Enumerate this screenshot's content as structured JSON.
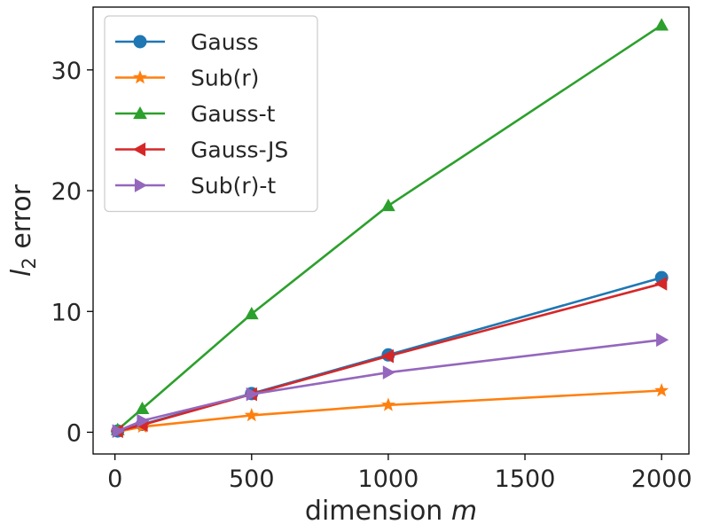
{
  "chart_data": {
    "type": "line",
    "xlabel_text": "dimension ",
    "xlabel_var": "m",
    "ylabel_var": "l",
    "ylabel_sub": "2",
    "ylabel_text": " error",
    "xlim": [
      -80,
      2100
    ],
    "ylim": [
      -1.8,
      35.2
    ],
    "xticks": [
      0,
      500,
      1000,
      1500,
      2000
    ],
    "yticks": [
      0,
      10,
      20,
      30
    ],
    "grid": false,
    "legend_position": "top-left",
    "x": [
      10,
      100,
      500,
      1000,
      2000
    ],
    "series": [
      {
        "name": "Gauss",
        "color": "#1f77b4",
        "marker": "circle",
        "values": [
          0.1,
          0.65,
          3.2,
          6.4,
          12.8
        ]
      },
      {
        "name": "Sub(r)",
        "color": "#ff7f0e",
        "marker": "star",
        "values": [
          0.05,
          0.45,
          1.4,
          2.25,
          3.45
        ]
      },
      {
        "name": "Gauss-t",
        "color": "#2ca02c",
        "marker": "triangle-up",
        "values": [
          0.2,
          1.95,
          9.8,
          18.75,
          33.7
        ]
      },
      {
        "name": "Gauss-JS",
        "color": "#d62728",
        "marker": "triangle-left",
        "values": [
          0.1,
          0.6,
          3.15,
          6.3,
          12.3
        ]
      },
      {
        "name": "Sub(r)-t",
        "color": "#9467bd",
        "marker": "triangle-right",
        "values": [
          0.1,
          0.95,
          3.15,
          4.95,
          7.65
        ]
      }
    ]
  }
}
